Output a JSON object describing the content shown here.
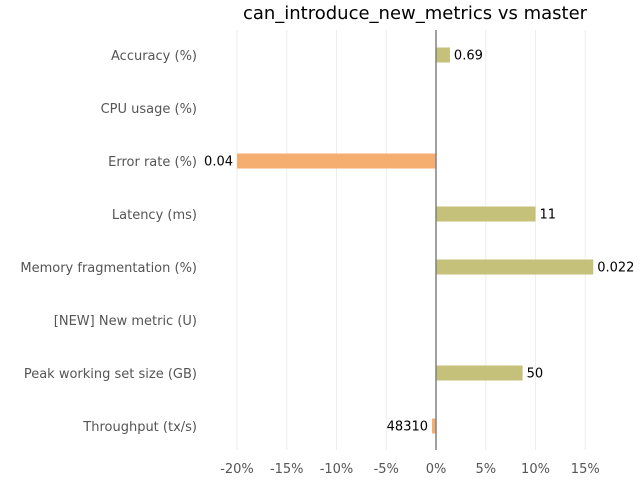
{
  "chart_data": {
    "type": "bar",
    "orientation": "horizontal",
    "title": "can_introduce_new_metrics vs master",
    "xlabel": "",
    "ylabel": "",
    "xlim": [
      -22,
      20
    ],
    "grid": true,
    "categories": [
      "Accuracy (%)",
      "CPU usage (%)",
      "Error rate (%)",
      "Latency (ms)",
      "Memory fragmentation (%)",
      "[NEW] New metric (U)",
      "Peak working set size (GB)",
      "Throughput (tx/s)"
    ],
    "values": [
      1.4,
      null,
      -20,
      10,
      15.8,
      null,
      8.7,
      -0.4
    ],
    "value_labels": [
      "0.69",
      "",
      "0.04",
      "11",
      "0.022",
      "",
      "50",
      "48310"
    ],
    "x_ticks": [
      -20,
      -15,
      -10,
      -5,
      0,
      5,
      10,
      15
    ],
    "x_tick_labels": [
      "-20%",
      "-15%",
      "-10%",
      "-5%",
      "0%",
      "5%",
      "10%",
      "15%"
    ],
    "colors": {
      "positive": "#c5c07a",
      "negative": "#f5ae6f",
      "zero_line": "#808080",
      "grid": "#eeeeee"
    }
  }
}
